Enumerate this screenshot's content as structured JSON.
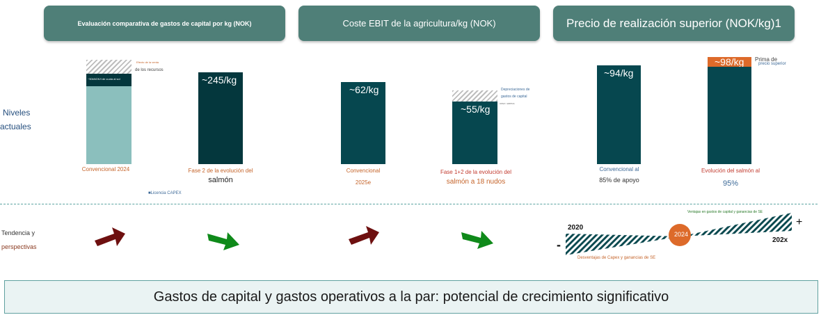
{
  "headers": {
    "capex": "Evaluación comparativa de gastos de capital por kg (NOK)",
    "ebit": "Coste EBIT de la agricultura/kg (NOK)",
    "price": "Precio de realización superior (NOK/kg)1"
  },
  "side_labels": {
    "current_line1": "Niveles",
    "current_line2": "actuales",
    "trend_line1": "Tendencia y",
    "trend_line2": "perspectivas"
  },
  "capex": {
    "conv_label": "Convencional 2024",
    "conv_inner_text": "~50kNOK/t de cuota al sol",
    "hatch_note_small": "Efecto de la venta",
    "hatch_note": "de los recursos",
    "phase2_value": "~245/kg",
    "phase2_label_line1": "Fase 2 de la evolución del",
    "phase2_label_line2": "salmón",
    "legend": "■Licencia CAPEX"
  },
  "ebit": {
    "conv_value": "~62/kg",
    "conv_label_line1": "Convencional",
    "conv_label_line2": "2025e",
    "phase12_value": "~55/kg",
    "dep_note_line1": "Depreciaciones de",
    "dep_note_line2": "gastos de capital",
    "dep_note_tiny": "OPEX / EBITDA",
    "phase12_label_line1": "Fase 1+2 de la evolución del",
    "phase12_label_line2": "salmón a 18 nudos"
  },
  "price": {
    "conv_value": "~94/kg",
    "conv_label_line1": "Convencional al",
    "conv_label_line2": "85% de apoyo",
    "evol_value": "~98/kg",
    "premium_line1": "Prima de",
    "premium_line2": "precio superior",
    "evol_label_line1": "Evolución del salmón al",
    "evol_label_line2": "95%"
  },
  "timeline": {
    "start_year": "2020",
    "mid_year": "2024",
    "end_year": "202x",
    "minus": "-",
    "plus": "+",
    "top_note": "Ventajas en gastos de capital y ganancias de SE",
    "bottom_note": "Desventajas de Capex y ganancias de SE"
  },
  "footer": "Gastos de capital y gastos operativos a la par: potencial de crecimiento significativo",
  "colors": {
    "header_bg": "#4f7f78",
    "bar_dark": "#06474f",
    "bar_light": "#8bbfbd",
    "arrow_red": "#6e1010",
    "arrow_green": "#0f8a1a",
    "accent_orange": "#dd6a2a"
  }
}
